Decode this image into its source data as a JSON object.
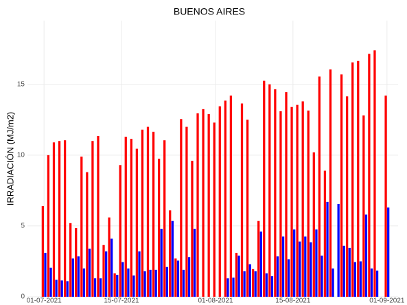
{
  "chart_data": {
    "type": "bar",
    "title": "BUENOS AIRES",
    "y_label": "IRRADIACIÓN (MJ/m2)",
    "x": [
      "01-07-2021",
      "02-07-2021",
      "03-07-2021",
      "04-07-2021",
      "05-07-2021",
      "06-07-2021",
      "07-07-2021",
      "08-07-2021",
      "09-07-2021",
      "10-07-2021",
      "11-07-2021",
      "12-07-2021",
      "13-07-2021",
      "14-07-2021",
      "15-07-2021",
      "16-07-2021",
      "17-07-2021",
      "18-07-2021",
      "19-07-2021",
      "20-07-2021",
      "21-07-2021",
      "22-07-2021",
      "23-07-2021",
      "24-07-2021",
      "25-07-2021",
      "26-07-2021",
      "27-07-2021",
      "28-07-2021",
      "29-07-2021",
      "30-07-2021",
      "31-07-2021",
      "01-08-2021",
      "02-08-2021",
      "03-08-2021",
      "04-08-2021",
      "05-08-2021",
      "06-08-2021",
      "07-08-2021",
      "08-08-2021",
      "09-08-2021",
      "10-08-2021",
      "11-08-2021",
      "12-08-2021",
      "13-08-2021",
      "14-08-2021",
      "15-08-2021",
      "16-08-2021",
      "17-08-2021",
      "18-08-2021",
      "19-08-2021",
      "20-08-2021",
      "21-08-2021",
      "22-08-2021",
      "23-08-2021",
      "24-08-2021",
      "25-08-2021",
      "26-08-2021",
      "27-08-2021",
      "28-08-2021",
      "29-08-2021",
      "30-08-2021",
      "31-08-2021",
      "01-09-2021"
    ],
    "series": [
      {
        "color": "#ff0000",
        "values": [
          6.4,
          10.0,
          10.9,
          11.0,
          11.05,
          5.2,
          4.85,
          9.9,
          8.8,
          11.0,
          11.35,
          3.65,
          5.6,
          1.65,
          9.3,
          11.3,
          11.15,
          10.45,
          11.8,
          12.0,
          11.65,
          9.75,
          11.05,
          6.1,
          2.7,
          12.55,
          12.0,
          9.6,
          12.95,
          13.25,
          12.9,
          12.3,
          13.45,
          13.85,
          14.2,
          3.1,
          13.65,
          12.5,
          1.95,
          5.35,
          15.25,
          15.0,
          14.65,
          13.1,
          14.45,
          13.4,
          13.55,
          13.8,
          13.15,
          10.2,
          15.55,
          8.9,
          16.05,
          null,
          15.7,
          14.15,
          16.55,
          16.65,
          12.8,
          17.15,
          17.4,
          null,
          14.2
        ]
      },
      {
        "color": "#0000ff",
        "values": [
          3.1,
          2.05,
          1.2,
          1.15,
          1.1,
          2.7,
          2.85,
          2.0,
          3.4,
          1.3,
          1.3,
          3.2,
          4.1,
          1.55,
          2.45,
          2.0,
          1.5,
          3.2,
          1.8,
          1.9,
          1.9,
          4.8,
          2.1,
          5.35,
          2.55,
          1.9,
          2.8,
          4.8,
          null,
          null,
          null,
          null,
          null,
          1.3,
          1.35,
          2.9,
          1.8,
          2.3,
          1.8,
          4.6,
          1.65,
          1.45,
          2.85,
          4.25,
          2.65,
          4.75,
          3.9,
          4.25,
          3.85,
          4.75,
          2.9,
          6.7,
          2.0,
          6.55,
          3.6,
          3.45,
          2.45,
          2.5,
          5.8,
          2.0,
          1.85,
          null,
          6.3
        ]
      }
    ],
    "xlim": [
      "28-06-2021",
      "03-09-2021"
    ],
    "xticks": [
      "01-07-2021",
      "15-07-2021",
      "01-08-2021",
      "15-08-2021",
      "01-09-2021"
    ],
    "ylim": [
      0,
      19.5
    ],
    "yticks": [
      0,
      5,
      10,
      15
    ],
    "grid": true
  }
}
